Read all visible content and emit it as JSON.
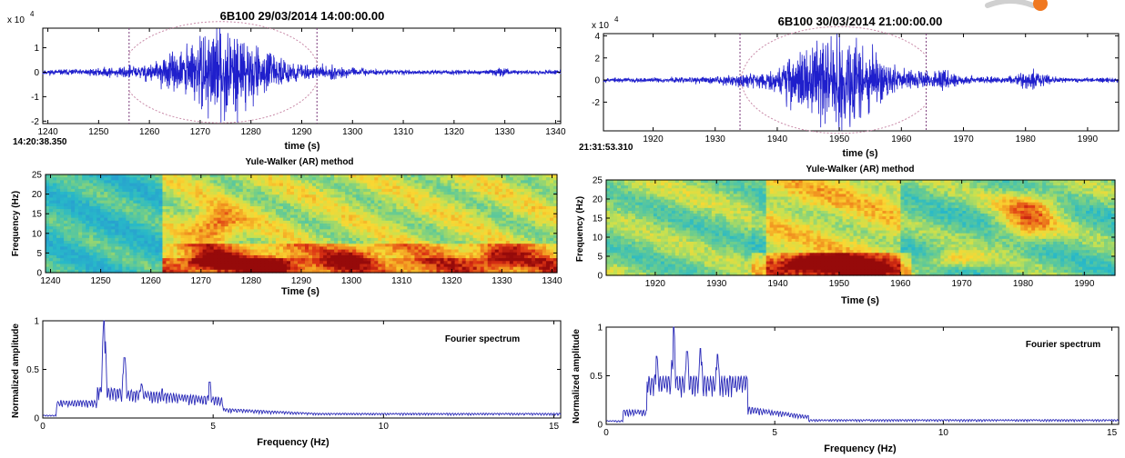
{
  "left": {
    "seismogram": {
      "title": "6B100 29/03/2014  14:00:00.00",
      "exponent": "x 10",
      "exponent_power": "4",
      "xlabel": "time (s)",
      "start_time": "14:20:38.350",
      "xlim": [
        1239,
        1341
      ],
      "ylim": [
        -2.1,
        1.8
      ],
      "xticks": [
        1240,
        1250,
        1260,
        1270,
        1280,
        1290,
        1300,
        1310,
        1320,
        1330,
        1340
      ],
      "yticks": [
        -2,
        -1,
        0,
        1
      ],
      "window_markers": [
        1256,
        1293
      ],
      "envelope_center": 1274,
      "peak_amplitude": 1.8,
      "color": "#1f1fcc"
    },
    "spectrogram": {
      "title": "Yule-Walker (AR) method",
      "xlabel": "Time (s)",
      "ylabel": "Frequency (Hz)",
      "xlim": [
        1239,
        1341
      ],
      "ylim": [
        0,
        25
      ],
      "xticks": [
        1240,
        1250,
        1260,
        1270,
        1280,
        1290,
        1300,
        1310,
        1320,
        1330,
        1340
      ],
      "yticks": [
        0,
        5,
        10,
        15,
        20,
        25
      ],
      "hotspots": [
        {
          "t": 1273,
          "f": 3,
          "strength": 1.0
        },
        {
          "t": 1273,
          "f": 12,
          "strength": 0.7
        },
        {
          "t": 1284,
          "f": 2,
          "strength": 0.75
        },
        {
          "t": 1300,
          "f": 4,
          "strength": 0.55
        },
        {
          "t": 1330,
          "f": 4,
          "strength": 0.6
        }
      ]
    },
    "spectrum": {
      "legend": "Fourier spectrum",
      "xlabel": "Frequency (Hz)",
      "ylabel": "Normalized amplitude",
      "xlim": [
        0,
        15.2
      ],
      "ylim": [
        0,
        1
      ],
      "xticks": [
        0,
        5,
        10,
        15
      ],
      "yticks": [
        0,
        0.5,
        1
      ],
      "peaks": [
        {
          "f": 1.8,
          "a": 1.0
        },
        {
          "f": 2.4,
          "a": 0.62
        },
        {
          "f": 2.9,
          "a": 0.35
        },
        {
          "f": 3.5,
          "a": 0.3
        },
        {
          "f": 4.9,
          "a": 0.37
        }
      ],
      "color": "#2a2ab8"
    }
  },
  "right": {
    "seismogram": {
      "title": "6B100 30/03/2014  21:00:00.00",
      "exponent": "x 10",
      "exponent_power": "4",
      "xlabel": "time (s)",
      "start_time": "21:31:53.310",
      "xlim": [
        1912,
        1995
      ],
      "ylim": [
        -4.6,
        4.2
      ],
      "xticks": [
        1920,
        1930,
        1940,
        1950,
        1960,
        1970,
        1980,
        1990
      ],
      "yticks": [
        -2,
        0,
        2,
        4
      ],
      "window_markers": [
        1934,
        1964
      ],
      "envelope_center": 1950,
      "peak_amplitude": 4.2,
      "color": "#1f1fcc"
    },
    "spectrogram": {
      "title": "Yule-Walker (AR) method",
      "xlabel": "Time (s)",
      "ylabel": "Frequency (Hz)",
      "xlim": [
        1912,
        1995
      ],
      "ylim": [
        0,
        25
      ],
      "xticks": [
        1920,
        1930,
        1940,
        1950,
        1960,
        1970,
        1980,
        1990
      ],
      "yticks": [
        0,
        5,
        10,
        15,
        20,
        25
      ],
      "hotspots": [
        {
          "t": 1945,
          "f": 3,
          "strength": 0.9
        },
        {
          "t": 1952,
          "f": 2,
          "strength": 1.0
        },
        {
          "t": 1969,
          "f": 4,
          "strength": 0.6
        },
        {
          "t": 1981,
          "f": 18,
          "strength": 0.65
        },
        {
          "t": 1981,
          "f": 12,
          "strength": 0.6
        }
      ]
    },
    "spectrum": {
      "legend": "Fourier spectrum",
      "xlabel": "Frequency (Hz)",
      "ylabel": "Normalized amplitude",
      "xlim": [
        0,
        15.2
      ],
      "ylim": [
        0,
        1
      ],
      "xticks": [
        0,
        5,
        10,
        15
      ],
      "yticks": [
        0,
        0.5,
        1
      ],
      "peaks": [
        {
          "f": 1.5,
          "a": 0.7
        },
        {
          "f": 2.0,
          "a": 1.0
        },
        {
          "f": 2.4,
          "a": 0.75
        },
        {
          "f": 2.8,
          "a": 0.78
        },
        {
          "f": 3.3,
          "a": 0.72
        },
        {
          "f": 3.8,
          "a": 0.38
        }
      ],
      "color": "#2a2ab8"
    }
  }
}
